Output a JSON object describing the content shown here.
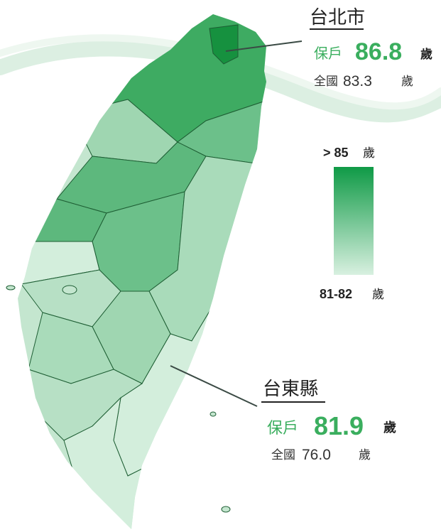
{
  "legend": {
    "high": "> 85",
    "high_unit": "歲",
    "low": "81-82",
    "low_unit": "歲"
  },
  "callouts": [
    {
      "region": "台北市",
      "label": "保戶",
      "value": "86.8",
      "unit": "歲",
      "national_label": "全國",
      "national_value": "83.3",
      "national_unit": "歲"
    },
    {
      "region": "台東縣",
      "label": "保戶",
      "value": "81.9",
      "unit": "歲",
      "national_label": "全國",
      "national_value": "76.0",
      "national_unit": "歲"
    }
  ]
}
